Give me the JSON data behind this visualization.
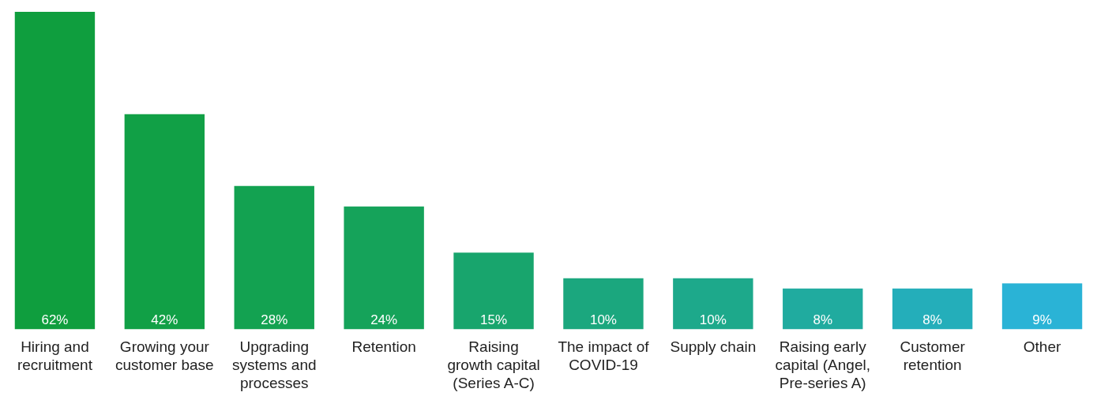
{
  "chart_data": {
    "type": "bar",
    "categories": [
      "Hiring and recruitment",
      "Growing your customer base",
      "Upgrading systems and processes",
      "Retention",
      "Raising growth capital (Series A-C)",
      "The impact of COVID-19",
      "Supply chain",
      "Raising early capital (Angel, Pre-series A)",
      "Customer retention",
      "Other"
    ],
    "values": [
      62,
      42,
      28,
      24,
      15,
      10,
      10,
      8,
      8,
      9
    ],
    "colors": [
      "#0f9e3e",
      "#11a046",
      "#13a251",
      "#15a35a",
      "#18a56d",
      "#1ba77e",
      "#1da98b",
      "#20ab9f",
      "#24aeba",
      "#2ab3d6"
    ],
    "value_labels": [
      "62%",
      "42%",
      "28%",
      "24%",
      "15%",
      "10%",
      "10%",
      "8%",
      "8%",
      "9%"
    ]
  }
}
